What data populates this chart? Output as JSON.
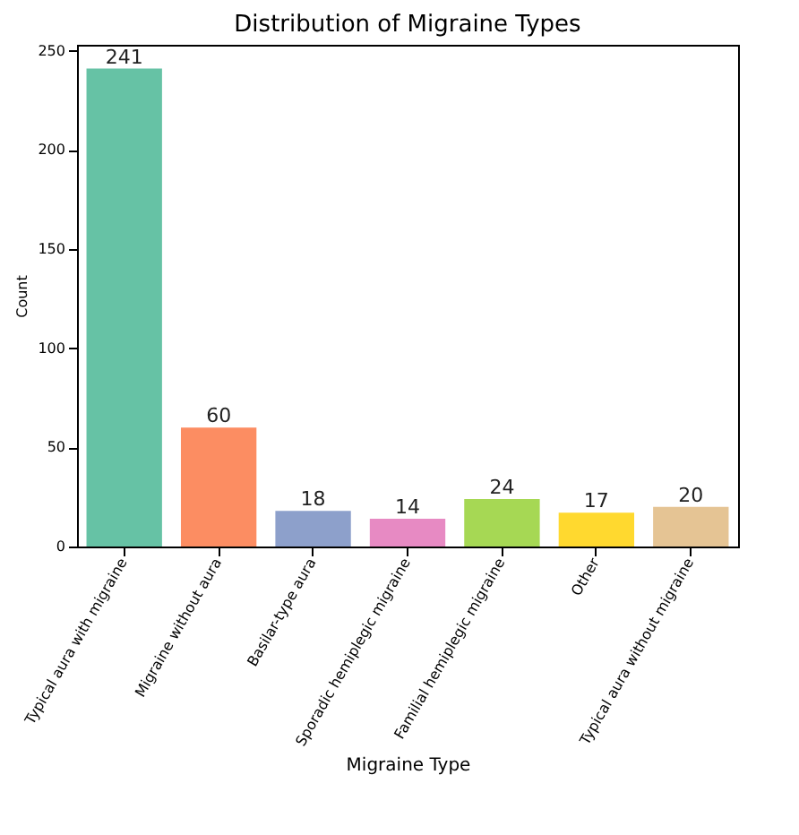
{
  "chart_data": {
    "type": "bar",
    "title": "Distribution of Migraine Types",
    "xlabel": "Migraine Type",
    "ylabel": "Count",
    "categories": [
      "Typical aura with migraine",
      "Migraine without aura",
      "Basilar-type aura",
      "Sporadic hemiplegic migraine",
      "Familial hemiplegic migraine",
      "Other",
      "Typical aura without migraine"
    ],
    "values": [
      241,
      60,
      18,
      14,
      24,
      17,
      20
    ],
    "colors": [
      "#66c2a5",
      "#fc8d62",
      "#8da0cb",
      "#e78ac3",
      "#a6d854",
      "#ffd92f",
      "#e5c494"
    ],
    "ylim": [
      0,
      253
    ],
    "yticks": [
      0,
      50,
      100,
      150,
      200,
      250
    ],
    "grid": false,
    "data_labels": true
  }
}
